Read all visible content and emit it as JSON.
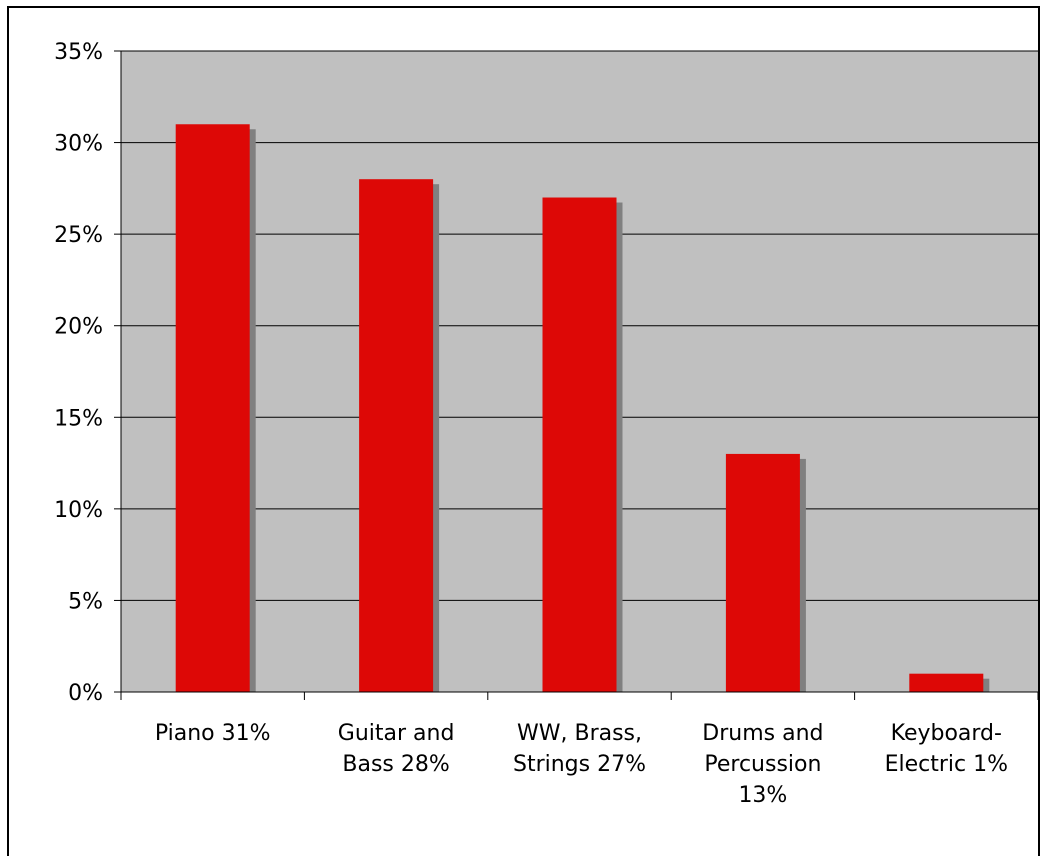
{
  "colors": {
    "plot_background": "#c0c0c0",
    "bar": "#dd0806",
    "bar_shadow": "#808080",
    "gridline": "#000000",
    "axis": "#000000"
  },
  "chart_data": {
    "type": "bar",
    "title": "",
    "xlabel": "",
    "ylabel": "",
    "categories": [
      [
        "Piano 31%"
      ],
      [
        "Guitar and",
        "Bass 28%"
      ],
      [
        "WW, Brass,",
        "Strings 27%"
      ],
      [
        "Drums and",
        "Percussion",
        "13%"
      ],
      [
        "Keyboard-",
        "Electric 1%"
      ]
    ],
    "values": [
      31,
      28,
      27,
      13,
      1
    ],
    "ylim": [
      0,
      35
    ],
    "yticks": [
      0,
      5,
      10,
      15,
      20,
      25,
      30,
      35
    ],
    "ytick_labels": [
      "0%",
      "5%",
      "10%",
      "15%",
      "20%",
      "25%",
      "30%",
      "35%"
    ],
    "grid": true,
    "legend": "none"
  }
}
